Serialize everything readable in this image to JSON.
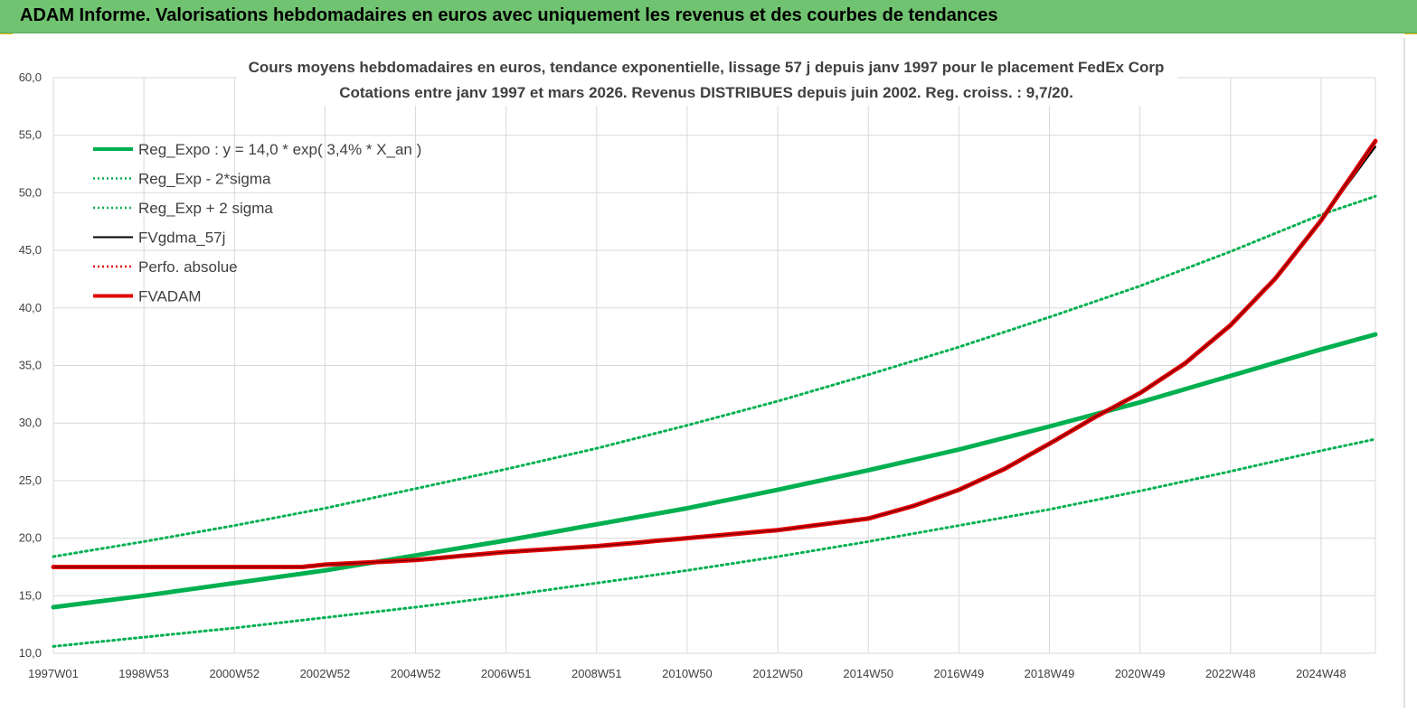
{
  "header": {
    "title": "ADAM Informe. Valorisations hebdomadaires en euros avec uniquement les revenus et des courbes de tendances"
  },
  "colors": {
    "header_bg": "#70c370",
    "reg_green": "#00b050",
    "fv_red": "#e00000",
    "fv_black": "#000000",
    "grid": "#d9d9d9"
  },
  "chart_data": {
    "type": "line",
    "title": [
      "Cours moyens hebdomadaires en euros, tendance exponentielle, lissage 57 j depuis janv 1997 pour le placement FedEx Corp",
      "Cotations entre janv 1997 et mars 2026. Revenus DISTRIBUES depuis juin 2002. Reg. croiss. : 9,7/20."
    ],
    "xlabel": "",
    "ylabel": "",
    "ylim": [
      10,
      60
    ],
    "xlim": [
      1997.0,
      2026.2
    ],
    "grid": true,
    "legend_position": "top-left",
    "x_tick_labels": [
      "1997W01",
      "1998W53",
      "2000W52",
      "2002W52",
      "2004W52",
      "2006W51",
      "2008W51",
      "2010W50",
      "2012W50",
      "2014W50",
      "2016W49",
      "2018W49",
      "2020W49",
      "2022W48",
      "2024W48"
    ],
    "x_tick_values": [
      1997.0,
      1999.0,
      2001.0,
      2003.0,
      2005.0,
      2007.0,
      2009.0,
      2011.0,
      2013.0,
      2015.0,
      2017.0,
      2019.0,
      2021.0,
      2023.0,
      2025.0
    ],
    "y_tick_labels": [
      "10,0",
      "15,0",
      "20,0",
      "25,0",
      "30,0",
      "35,0",
      "40,0",
      "45,0",
      "50,0",
      "55,0",
      "60,0"
    ],
    "y_tick_values": [
      10,
      15,
      20,
      25,
      30,
      35,
      40,
      45,
      50,
      55,
      60
    ],
    "series": [
      {
        "name": "Reg_Expo : y = 14,0 * exp( 3,4% *  X_an )",
        "color": "#00b050",
        "style": "solid-thick",
        "x": [
          1997.0,
          1999.0,
          2001.0,
          2003.0,
          2005.0,
          2007.0,
          2009.0,
          2011.0,
          2013.0,
          2015.0,
          2017.0,
          2019.0,
          2021.0,
          2023.0,
          2025.0,
          2026.2
        ],
        "y": [
          14.0,
          15.0,
          16.1,
          17.2,
          18.5,
          19.8,
          21.2,
          22.6,
          24.2,
          25.9,
          27.7,
          29.7,
          31.8,
          34.1,
          36.4,
          37.7
        ]
      },
      {
        "name": "Reg_Exp - 2*sigma",
        "color": "#00b050",
        "style": "dotted",
        "x": [
          1997.0,
          1999.0,
          2001.0,
          2003.0,
          2005.0,
          2007.0,
          2009.0,
          2011.0,
          2013.0,
          2015.0,
          2017.0,
          2019.0,
          2021.0,
          2023.0,
          2025.0,
          2026.2
        ],
        "y": [
          10.6,
          11.4,
          12.2,
          13.1,
          14.0,
          15.0,
          16.1,
          17.2,
          18.4,
          19.7,
          21.1,
          22.5,
          24.1,
          25.8,
          27.6,
          28.6
        ]
      },
      {
        "name": "Reg_Exp + 2 sigma",
        "color": "#00b050",
        "style": "dotted",
        "x": [
          1997.0,
          1999.0,
          2001.0,
          2003.0,
          2005.0,
          2007.0,
          2009.0,
          2011.0,
          2013.0,
          2015.0,
          2017.0,
          2019.0,
          2021.0,
          2023.0,
          2025.0,
          2026.2
        ],
        "y": [
          18.4,
          19.7,
          21.1,
          22.6,
          24.3,
          26.0,
          27.8,
          29.8,
          31.9,
          34.2,
          36.6,
          39.2,
          41.9,
          44.9,
          48.1,
          49.7
        ]
      },
      {
        "name": "FVgdma_57j",
        "color": "#000000",
        "style": "solid",
        "x": [
          1997.0,
          1999.0,
          2001.0,
          2002.5,
          2003.0,
          2005.0,
          2007.0,
          2009.0,
          2011.0,
          2013.0,
          2015.0,
          2016.0,
          2017.0,
          2018.0,
          2019.0,
          2020.0,
          2021.0,
          2022.0,
          2023.0,
          2024.0,
          2025.0,
          2026.2
        ],
        "y": [
          17.5,
          17.5,
          17.5,
          17.5,
          17.7,
          18.1,
          18.8,
          19.3,
          20.0,
          20.7,
          21.7,
          22.8,
          24.2,
          26.0,
          28.2,
          30.5,
          32.6,
          35.2,
          38.5,
          42.6,
          47.6,
          54.0
        ]
      },
      {
        "name": "Perfo. absolue",
        "color": "#e00000",
        "style": "dotted",
        "x": [],
        "y": []
      },
      {
        "name": "FVADAM",
        "color": "#e00000",
        "style": "solid-thick",
        "x": [
          1997.0,
          1999.0,
          2001.0,
          2002.5,
          2003.0,
          2005.0,
          2007.0,
          2009.0,
          2011.0,
          2013.0,
          2015.0,
          2016.0,
          2017.0,
          2018.0,
          2019.0,
          2020.0,
          2021.0,
          2022.0,
          2023.0,
          2024.0,
          2025.0,
          2026.2
        ],
        "y": [
          17.5,
          17.5,
          17.5,
          17.5,
          17.7,
          18.1,
          18.8,
          19.3,
          20.0,
          20.7,
          21.7,
          22.8,
          24.2,
          26.0,
          28.2,
          30.5,
          32.6,
          35.2,
          38.5,
          42.6,
          47.6,
          54.5
        ]
      }
    ]
  }
}
